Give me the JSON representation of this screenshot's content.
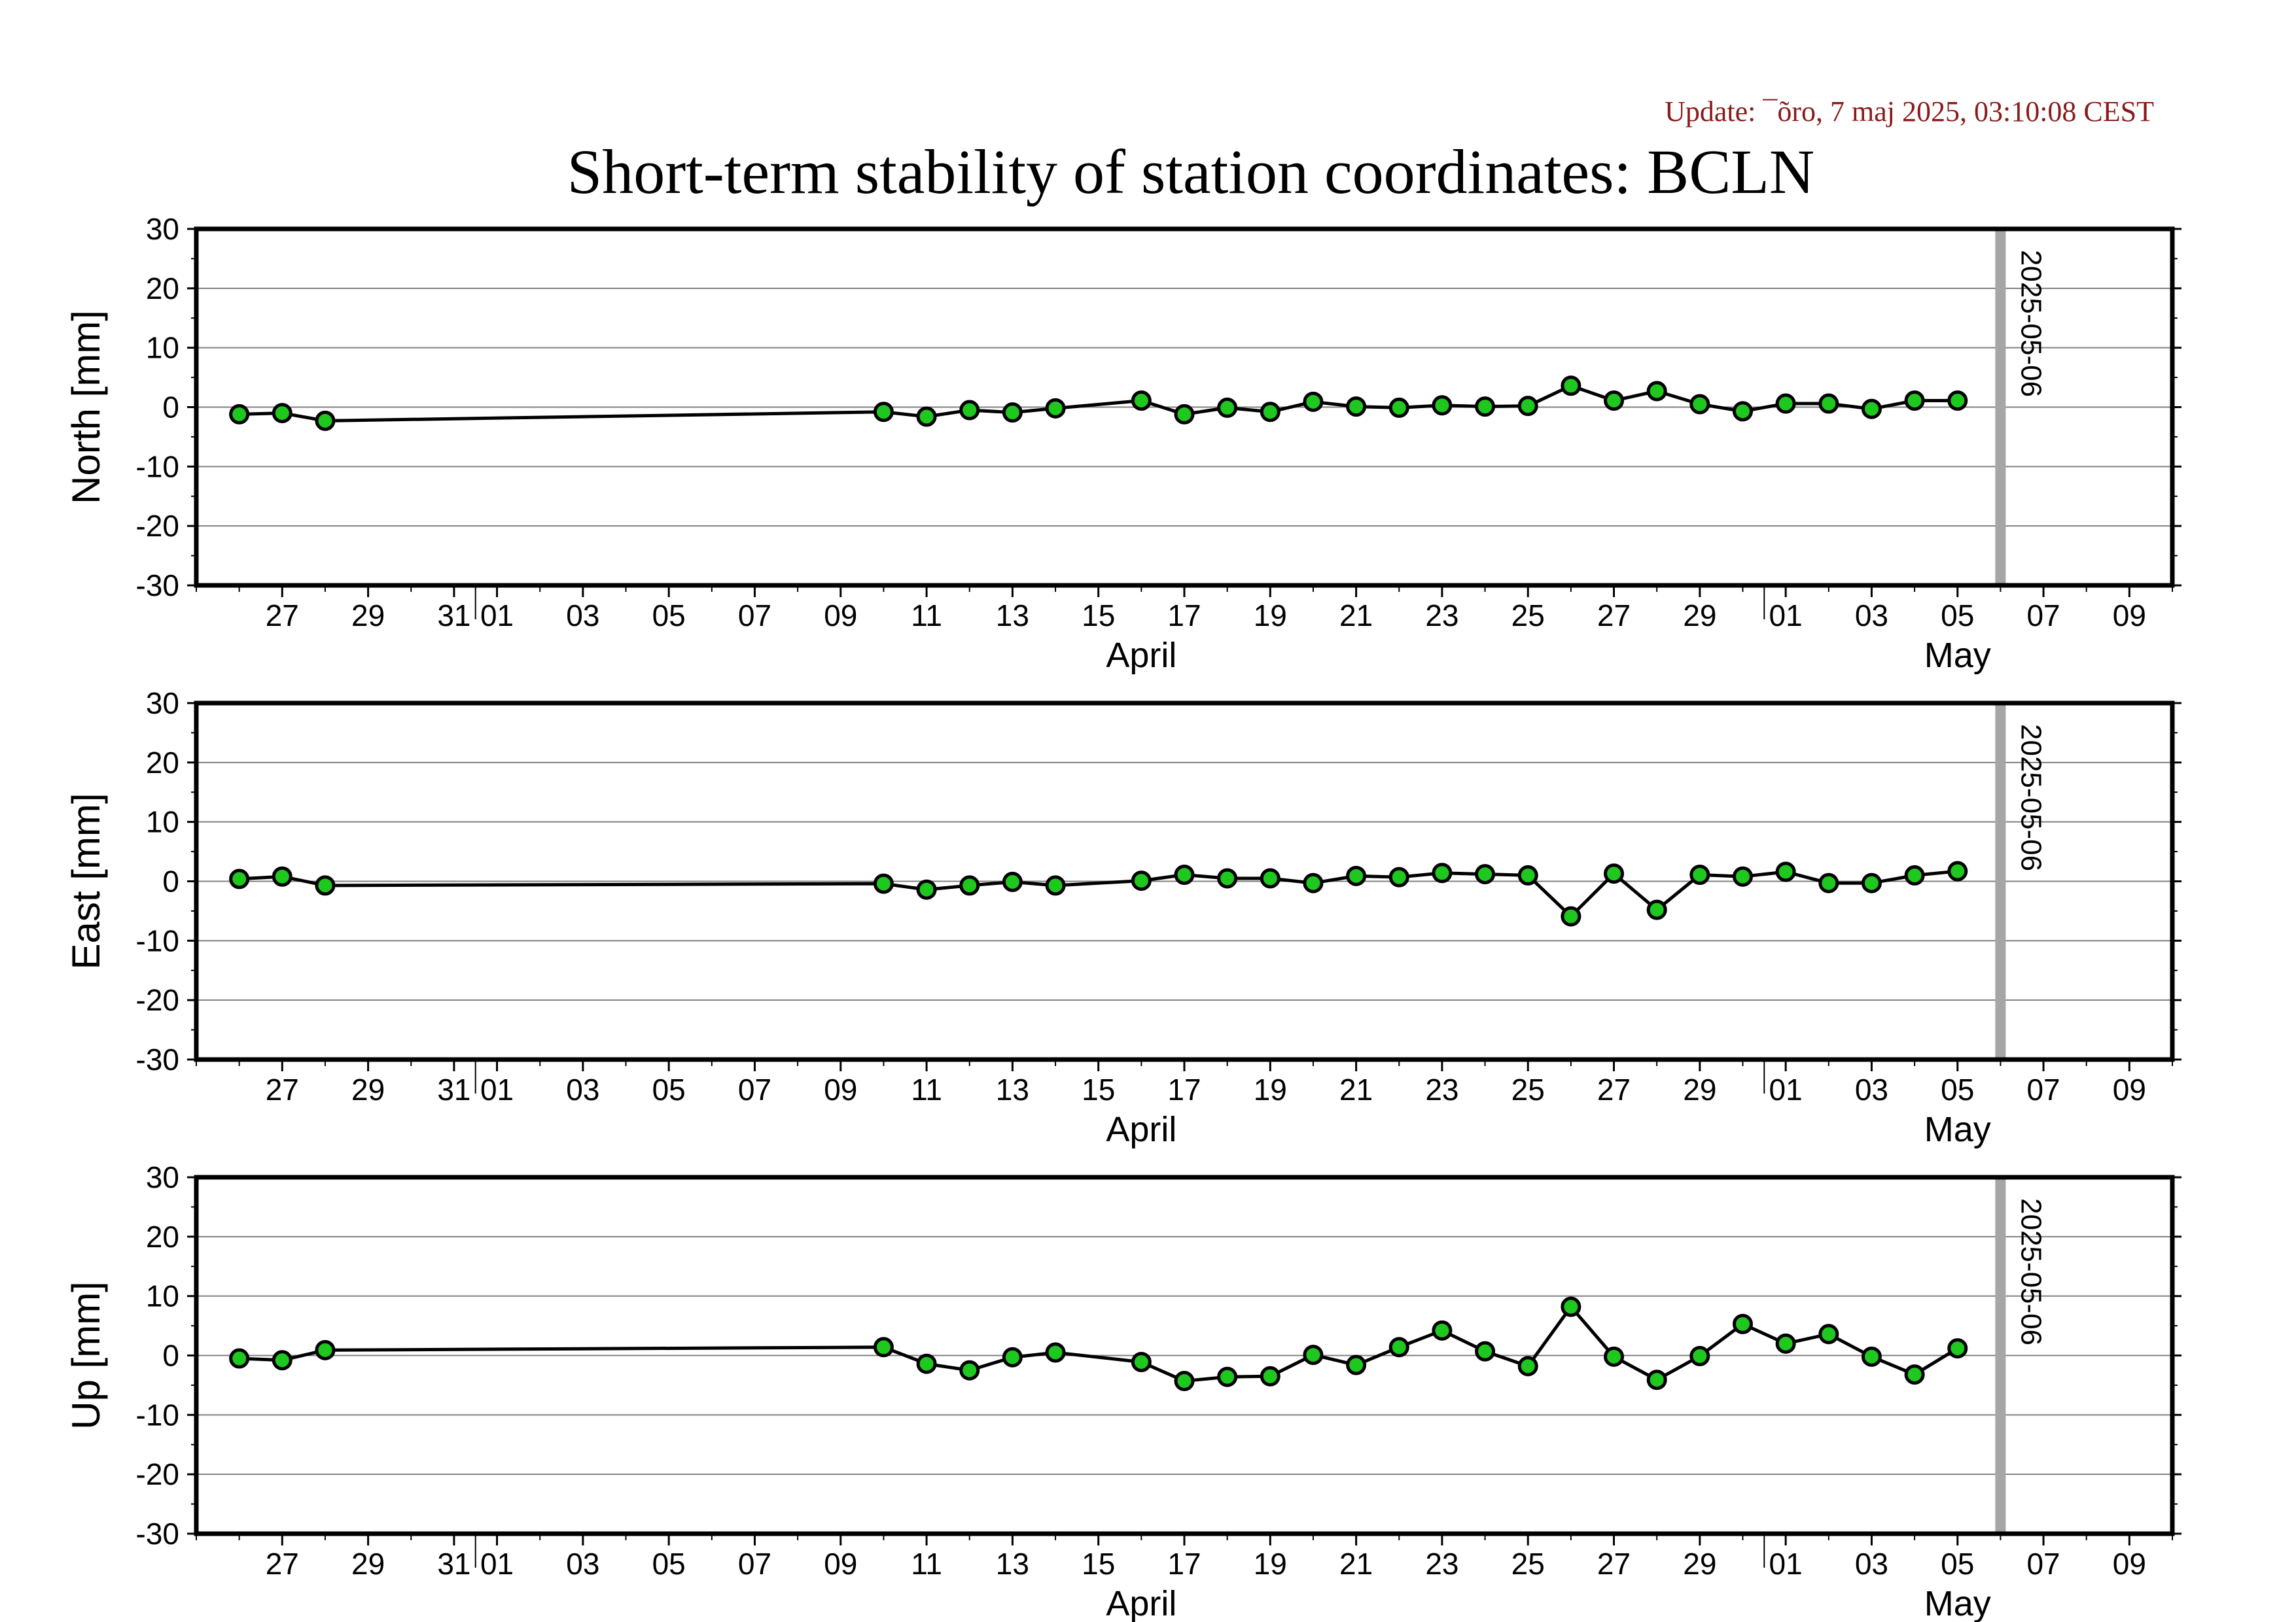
{
  "header": {
    "update": "Update: ¯õro, 7 maj 2025, 03:10:08 CEST",
    "title": "Short-term stability of station coordinates: BCLN"
  },
  "colors": {
    "point_fill": "#1ec81e",
    "line": "#000000",
    "grid": "#808080",
    "marker_line": "#a6a6a6"
  },
  "chart_data": [
    {
      "type": "line",
      "ylabel": "North [mm]",
      "ylim": [
        -30,
        30
      ],
      "yticks": [
        30,
        20,
        10,
        0,
        -10,
        -20,
        -30
      ],
      "xlim": [
        "2025-03-25",
        "2025-05-10"
      ],
      "x_tick_labels": [
        "27",
        "29",
        "31",
        "01",
        "03",
        "05",
        "07",
        "09",
        "11",
        "13",
        "15",
        "17",
        "19",
        "21",
        "23",
        "25",
        "27",
        "29",
        "01",
        "03",
        "05",
        "07",
        "09"
      ],
      "month_labels": [
        "April",
        "May"
      ],
      "grid": true,
      "marker_line": {
        "date": "2025-05-06",
        "label": "2025-05-06"
      },
      "series": [
        {
          "x": [
            "2025-03-26",
            "2025-03-27",
            "2025-03-28",
            "2025-04-10",
            "2025-04-11",
            "2025-04-12",
            "2025-04-13",
            "2025-04-14",
            "2025-04-16",
            "2025-04-17",
            "2025-04-18",
            "2025-04-19",
            "2025-04-20",
            "2025-04-21",
            "2025-04-22",
            "2025-04-23",
            "2025-04-24",
            "2025-04-25",
            "2025-04-26",
            "2025-04-27",
            "2025-04-28",
            "2025-04-29",
            "2025-04-30",
            "2025-05-01",
            "2025-05-02",
            "2025-05-03",
            "2025-05-04",
            "2025-05-05"
          ],
          "values": [
            -1.2,
            -1.0,
            -2.3,
            -0.8,
            -1.6,
            -0.5,
            -0.9,
            -0.2,
            1.1,
            -1.2,
            -0.1,
            -0.8,
            0.9,
            0.1,
            -0.1,
            0.3,
            0.1,
            0.2,
            3.6,
            1.1,
            2.7,
            0.5,
            -0.7,
            0.6,
            0.6,
            -0.3,
            1.1,
            1.1
          ]
        }
      ]
    },
    {
      "type": "line",
      "ylabel": "East [mm]",
      "ylim": [
        -30,
        30
      ],
      "yticks": [
        30,
        20,
        10,
        0,
        -10,
        -20,
        -30
      ],
      "xlim": [
        "2025-03-25",
        "2025-05-10"
      ],
      "x_tick_labels": [
        "27",
        "29",
        "31",
        "01",
        "03",
        "05",
        "07",
        "09",
        "11",
        "13",
        "15",
        "17",
        "19",
        "21",
        "23",
        "25",
        "27",
        "29",
        "01",
        "03",
        "05",
        "07",
        "09"
      ],
      "month_labels": [
        "April",
        "May"
      ],
      "grid": true,
      "marker_line": {
        "date": "2025-05-06",
        "label": "2025-05-06"
      },
      "series": [
        {
          "x": [
            "2025-03-26",
            "2025-03-27",
            "2025-03-28",
            "2025-04-10",
            "2025-04-11",
            "2025-04-12",
            "2025-04-13",
            "2025-04-14",
            "2025-04-16",
            "2025-04-17",
            "2025-04-18",
            "2025-04-19",
            "2025-04-20",
            "2025-04-21",
            "2025-04-22",
            "2025-04-23",
            "2025-04-24",
            "2025-04-25",
            "2025-04-26",
            "2025-04-27",
            "2025-04-28",
            "2025-04-29",
            "2025-04-30",
            "2025-05-01",
            "2025-05-02",
            "2025-05-03",
            "2025-05-04",
            "2025-05-05"
          ],
          "values": [
            0.4,
            0.8,
            -0.7,
            -0.4,
            -1.4,
            -0.7,
            -0.1,
            -0.7,
            0.1,
            1.1,
            0.5,
            0.5,
            -0.3,
            0.9,
            0.7,
            1.4,
            1.2,
            1.0,
            -5.9,
            1.3,
            -4.8,
            1.1,
            0.8,
            1.6,
            -0.3,
            -0.3,
            1.0,
            1.7
          ]
        }
      ]
    },
    {
      "type": "line",
      "ylabel": "Up [mm]",
      "ylim": [
        -30,
        30
      ],
      "yticks": [
        30,
        20,
        10,
        0,
        -10,
        -20,
        -30
      ],
      "xlim": [
        "2025-03-25",
        "2025-05-10"
      ],
      "x_tick_labels": [
        "27",
        "29",
        "31",
        "01",
        "03",
        "05",
        "07",
        "09",
        "11",
        "13",
        "15",
        "17",
        "19",
        "21",
        "23",
        "25",
        "27",
        "29",
        "01",
        "03",
        "05",
        "07",
        "09"
      ],
      "month_labels": [
        "April",
        "May"
      ],
      "grid": true,
      "marker_line": {
        "date": "2025-05-06",
        "label": "2025-05-06"
      },
      "series": [
        {
          "x": [
            "2025-03-26",
            "2025-03-27",
            "2025-03-28",
            "2025-04-10",
            "2025-04-11",
            "2025-04-12",
            "2025-04-13",
            "2025-04-14",
            "2025-04-16",
            "2025-04-17",
            "2025-04-18",
            "2025-04-19",
            "2025-04-20",
            "2025-04-21",
            "2025-04-22",
            "2025-04-23",
            "2025-04-24",
            "2025-04-25",
            "2025-04-26",
            "2025-04-27",
            "2025-04-28",
            "2025-04-29",
            "2025-04-30",
            "2025-05-01",
            "2025-05-02",
            "2025-05-03",
            "2025-05-04",
            "2025-05-05"
          ],
          "values": [
            -0.5,
            -0.8,
            0.9,
            1.4,
            -1.4,
            -2.5,
            -0.3,
            0.5,
            -1.1,
            -4.3,
            -3.6,
            -3.5,
            0.1,
            -1.6,
            1.4,
            4.2,
            0.7,
            -1.8,
            8.2,
            -0.2,
            -4.1,
            -0.1,
            5.3,
            2.0,
            3.6,
            -0.2,
            -3.2,
            1.2
          ]
        }
      ]
    }
  ]
}
